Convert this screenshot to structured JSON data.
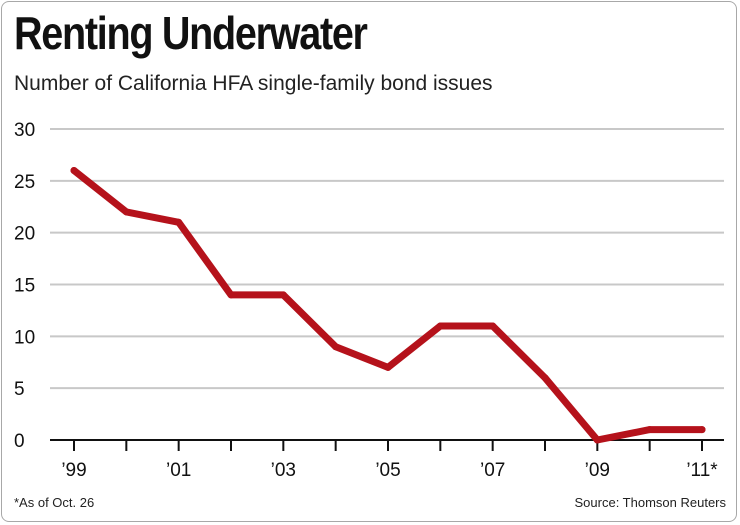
{
  "title": "Renting Underwater",
  "subtitle": "Number of California HFA single-family bond issues",
  "footnote": "*As of Oct. 26",
  "source": "Source: Thomson Reuters",
  "colors": {
    "line": "#b5121b",
    "grid": "#c8c8c8",
    "axis": "#111111",
    "border": "#a8a8a8"
  },
  "chart_data": {
    "type": "line",
    "title": "Renting Underwater",
    "subtitle": "Number of California HFA single-family bond issues",
    "xlabel": "",
    "ylabel": "",
    "x": [
      1999,
      2000,
      2001,
      2002,
      2003,
      2004,
      2005,
      2006,
      2007,
      2008,
      2009,
      2010,
      2011
    ],
    "series": [
      {
        "name": "Single-family bond issues",
        "values": [
          26,
          22,
          21,
          14,
          14,
          9,
          7,
          11,
          11,
          6,
          0,
          1,
          1
        ]
      }
    ],
    "ylim": [
      0,
      30
    ],
    "yticks": [
      "0",
      "5",
      "10",
      "15",
      "20",
      "25",
      "30"
    ],
    "xticks": [
      {
        "x": 1999,
        "label": "’99"
      },
      {
        "x": 2001,
        "label": "’01"
      },
      {
        "x": 2003,
        "label": "’03"
      },
      {
        "x": 2005,
        "label": "’05"
      },
      {
        "x": 2007,
        "label": "’07"
      },
      {
        "x": 2009,
        "label": "’09"
      },
      {
        "x": 2011,
        "label": "’11*"
      }
    ],
    "grid": true,
    "legend": "none"
  }
}
